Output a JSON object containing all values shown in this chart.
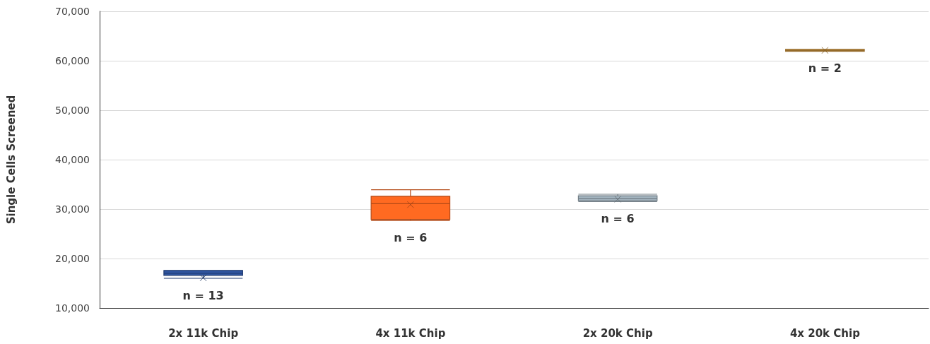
{
  "chart_data": {
    "type": "box",
    "ylabel": "Single Cells Screened",
    "categories": [
      "2x 11k Chip",
      "4x 11k Chip",
      "2x 20k Chip",
      "4x 20k Chip"
    ],
    "colors": [
      "#2f55a0",
      "#ff6a21",
      "#a3b4bf",
      "#d4973a"
    ],
    "boxes": [
      {
        "low": 16000,
        "q1": 16600,
        "median": 17000,
        "q3": 17600,
        "high": 17600,
        "mean": 16100
      },
      {
        "low": 27700,
        "q1": 27900,
        "median": 31100,
        "q3": 32600,
        "high": 33900,
        "mean": 30900
      },
      {
        "low": 31500,
        "q1": 31700,
        "median": 32100,
        "q3": 32700,
        "high": 33000,
        "mean": 32000
      },
      {
        "low": 61900,
        "q1": 61900,
        "median": 62100,
        "q3": 62300,
        "high": 62300,
        "mean": 62100
      }
    ],
    "ylim": [
      10000,
      70000
    ],
    "yticks": [
      {
        "value": 10000,
        "label": "10,000"
      },
      {
        "value": 20000,
        "label": "20,000"
      },
      {
        "value": 30000,
        "label": "30,000"
      },
      {
        "value": 40000,
        "label": "40,000"
      },
      {
        "value": 50000,
        "label": "50,000"
      },
      {
        "value": 60000,
        "label": "60,000"
      },
      {
        "value": 70000,
        "label": "70,000"
      }
    ],
    "grid": "y",
    "annotations": [
      "n = 13",
      "n = 6",
      "n = 6",
      "n = 2"
    ]
  }
}
